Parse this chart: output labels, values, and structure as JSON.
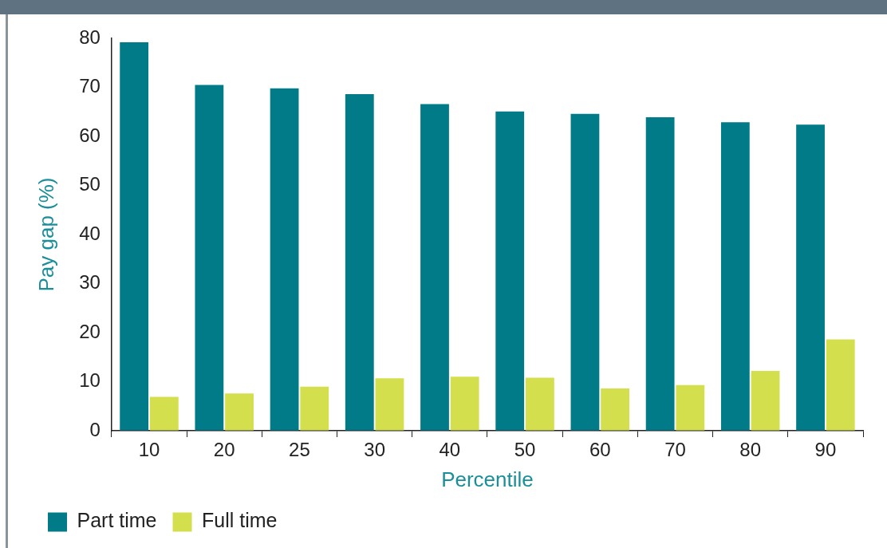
{
  "chart_data": {
    "type": "bar",
    "xlabel": "Percentile",
    "ylabel": "Pay gap (%)",
    "categories": [
      "10",
      "20",
      "25",
      "30",
      "40",
      "50",
      "60",
      "70",
      "80",
      "90"
    ],
    "series": [
      {
        "name": "Part time",
        "color": "#007b87",
        "values": [
          79.2,
          70.5,
          69.8,
          68.6,
          66.6,
          65.1,
          64.6,
          63.9,
          62.9,
          62.4
        ]
      },
      {
        "name": "Full time",
        "color": "#d4df4d",
        "values": [
          6.9,
          7.6,
          9.0,
          10.7,
          11.0,
          10.8,
          8.6,
          9.3,
          12.2,
          18.6
        ]
      }
    ],
    "ylim": [
      0,
      80
    ],
    "yticks": [
      0,
      10,
      20,
      30,
      40,
      50,
      60,
      70,
      80
    ],
    "grid": false,
    "legend": "bottom left"
  }
}
